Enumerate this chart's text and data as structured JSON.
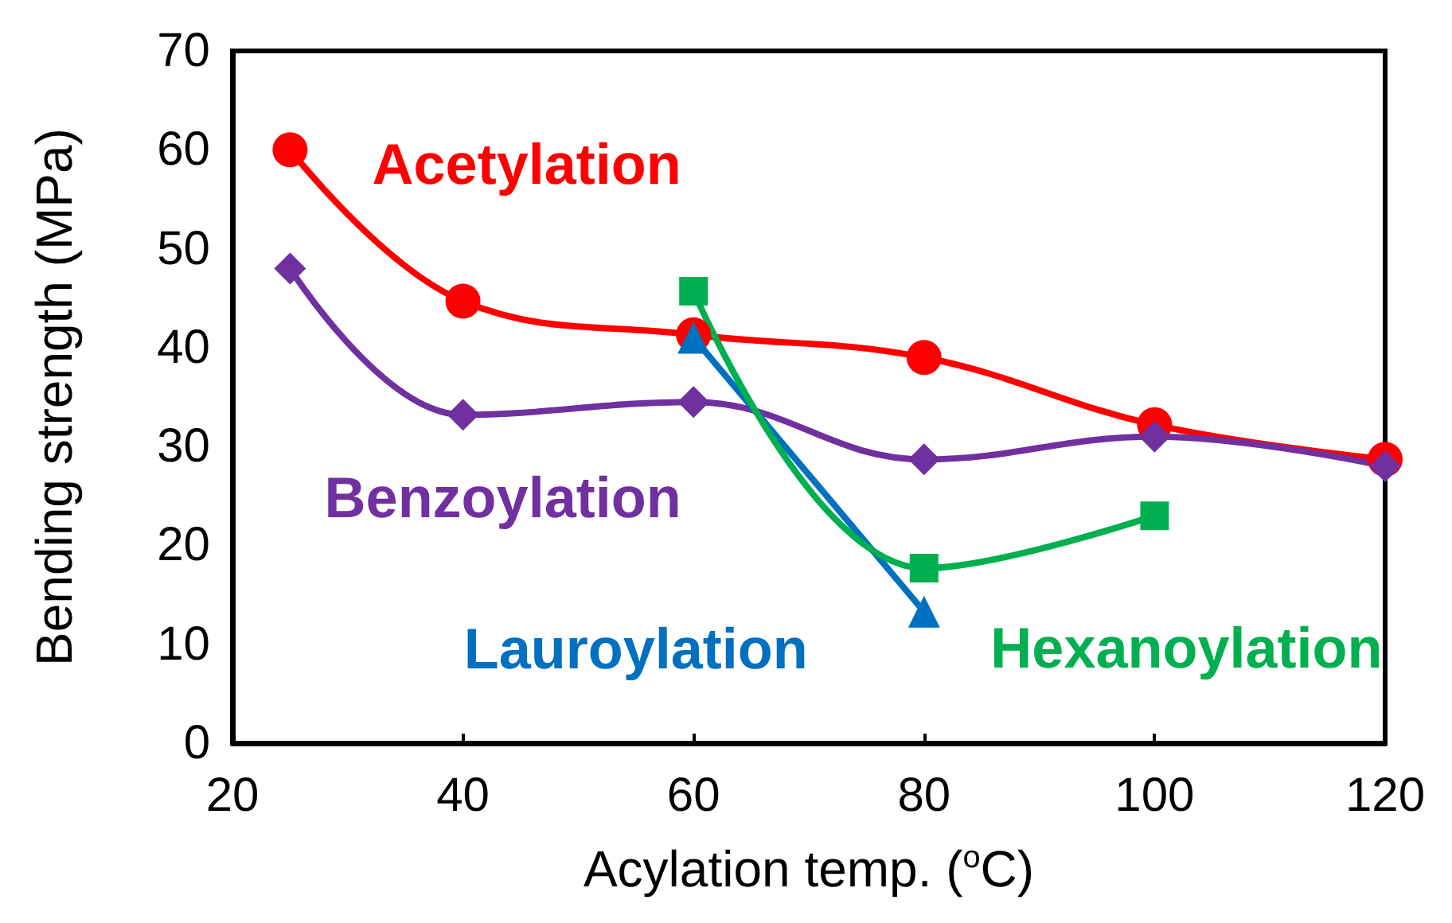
{
  "chart_data": {
    "type": "line",
    "xlabel": "Acylation temp. ($^{o}$C)",
    "ylabel": "Bending strength (MPa)",
    "xlim": [
      20,
      120
    ],
    "xticks": [
      20,
      40,
      60,
      80,
      100,
      120
    ],
    "ylim": [
      0,
      70
    ],
    "yticks": [
      0,
      10,
      20,
      30,
      40,
      50,
      60,
      70
    ],
    "grid": false,
    "legend": false,
    "series": [
      {
        "name": "Acetylation",
        "color": "#ff0000",
        "marker": "circle",
        "x": [
          25,
          40,
          60,
          80,
          100,
          120
        ],
        "values": [
          60,
          44.7,
          41.3,
          39,
          32.2,
          28.7
        ]
      },
      {
        "name": "Benzoylation",
        "color": "#7030a0",
        "marker": "diamond",
        "x": [
          25,
          40,
          60,
          80,
          100,
          120
        ],
        "values": [
          48,
          33.2,
          34.5,
          28.7,
          31,
          28
        ]
      },
      {
        "name": "Lauroylation",
        "color": "#0070c0",
        "marker": "triangle",
        "x": [
          60,
          80
        ],
        "values": [
          41,
          13.3
        ]
      },
      {
        "name": "Hexanoylation",
        "color": "#00b050",
        "marker": "square",
        "x": [
          60,
          80,
          100
        ],
        "values": [
          45.7,
          17.7,
          23
        ]
      }
    ]
  }
}
